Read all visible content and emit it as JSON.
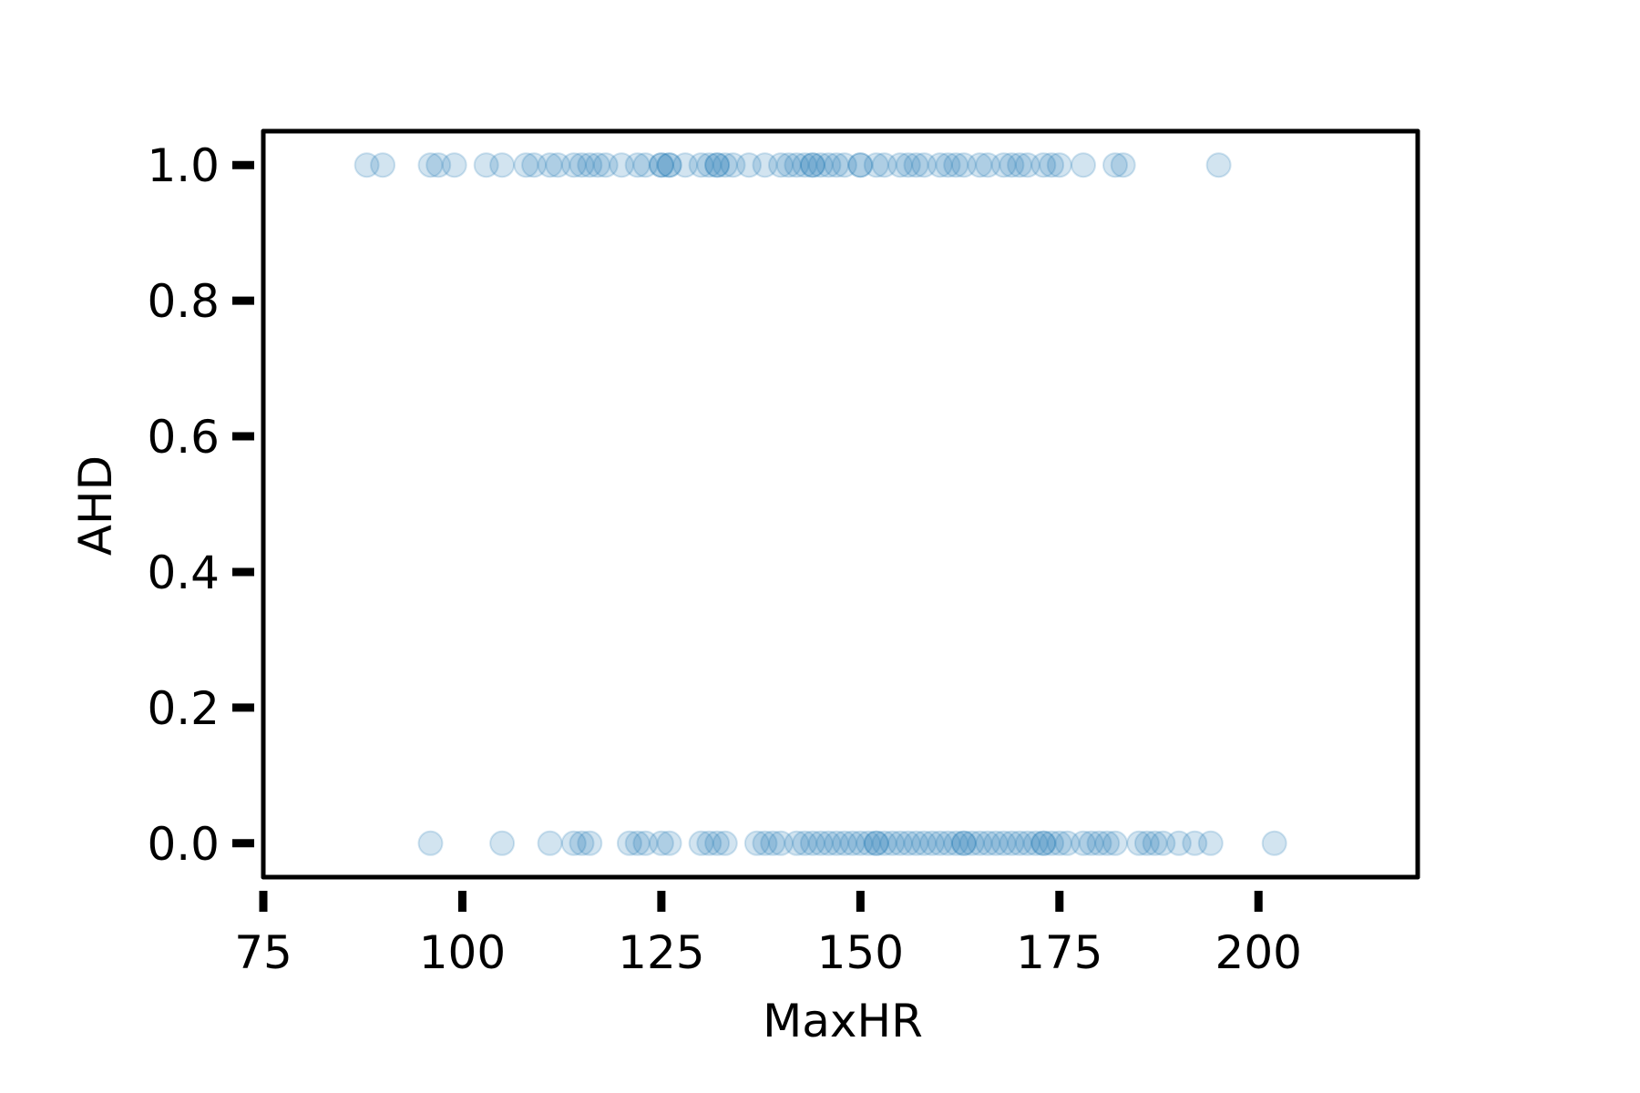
{
  "chart_data": {
    "type": "scatter",
    "title": "",
    "xlabel": "MaxHR",
    "ylabel": "AHD",
    "xlim": [
      75,
      220
    ],
    "ylim": [
      -0.05,
      1.05
    ],
    "xticks": [
      75,
      100,
      125,
      150,
      175,
      200
    ],
    "xtick_labels": [
      "75",
      "100",
      "125",
      "150",
      "175",
      "200"
    ],
    "yticks": [
      0.0,
      0.2,
      0.4,
      0.6,
      0.8,
      1.0
    ],
    "ytick_labels": [
      "0.0",
      "0.2",
      "0.4",
      "0.6",
      "0.8",
      "1.0"
    ],
    "grid": false,
    "legend": false,
    "marker_color": "#1f77b4",
    "marker_alpha": 0.2,
    "series": [
      {
        "x": [
          88,
          90,
          96,
          97,
          99,
          103,
          105,
          108,
          109,
          111,
          112,
          114,
          115,
          116,
          117,
          118,
          120,
          122,
          123,
          125,
          125,
          126,
          126,
          128,
          130,
          131,
          132,
          132,
          133,
          134,
          136,
          138,
          140,
          141,
          142,
          143,
          144,
          144,
          145,
          146,
          147,
          148,
          150,
          150,
          152,
          153,
          155,
          156,
          157,
          158,
          160,
          161,
          162,
          163,
          165,
          166,
          168,
          169,
          170,
          171,
          173,
          174,
          175,
          178,
          182,
          183,
          195
        ],
        "y": [
          1,
          1,
          1,
          1,
          1,
          1,
          1,
          1,
          1,
          1,
          1,
          1,
          1,
          1,
          1,
          1,
          1,
          1,
          1,
          1,
          1,
          1,
          1,
          1,
          1,
          1,
          1,
          1,
          1,
          1,
          1,
          1,
          1,
          1,
          1,
          1,
          1,
          1,
          1,
          1,
          1,
          1,
          1,
          1,
          1,
          1,
          1,
          1,
          1,
          1,
          1,
          1,
          1,
          1,
          1,
          1,
          1,
          1,
          1,
          1,
          1,
          1,
          1,
          1,
          1,
          1,
          1
        ]
      },
      {
        "x": [
          96,
          105,
          111,
          114,
          115,
          116,
          121,
          122,
          123,
          125,
          126,
          130,
          131,
          132,
          133,
          137,
          138,
          139,
          140,
          142,
          143,
          144,
          145,
          146,
          147,
          148,
          149,
          150,
          151,
          152,
          152,
          153,
          154,
          155,
          156,
          157,
          158,
          159,
          160,
          161,
          162,
          163,
          163,
          164,
          165,
          166,
          167,
          168,
          169,
          170,
          171,
          172,
          173,
          173,
          174,
          175,
          176,
          178,
          179,
          180,
          181,
          182,
          185,
          186,
          187,
          188,
          190,
          192,
          194,
          202
        ],
        "y": [
          0,
          0,
          0,
          0,
          0,
          0,
          0,
          0,
          0,
          0,
          0,
          0,
          0,
          0,
          0,
          0,
          0,
          0,
          0,
          0,
          0,
          0,
          0,
          0,
          0,
          0,
          0,
          0,
          0,
          0,
          0,
          0,
          0,
          0,
          0,
          0,
          0,
          0,
          0,
          0,
          0,
          0,
          0,
          0,
          0,
          0,
          0,
          0,
          0,
          0,
          0,
          0,
          0,
          0,
          0,
          0,
          0,
          0,
          0,
          0,
          0,
          0,
          0,
          0,
          0,
          0,
          0,
          0,
          0,
          0
        ]
      }
    ]
  }
}
